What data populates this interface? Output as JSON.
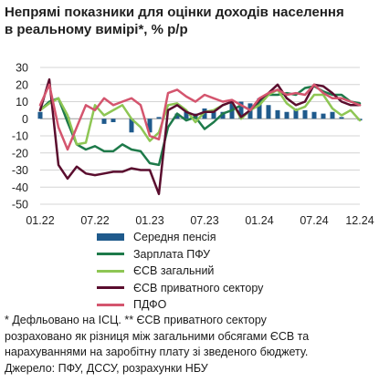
{
  "title_lines": [
    "Непрямі показники для оцінки доходів населення",
    "в реальному вимірі*, % р/р"
  ],
  "chart_data": {
    "type": "line",
    "y_ticks": [
      30,
      20,
      10,
      0,
      -10,
      -20,
      -30,
      -40,
      -50
    ],
    "ylim": [
      -50,
      30
    ],
    "x_tick_labels": [
      "01.22",
      "07.22",
      "01.23",
      "07.23",
      "01.24",
      "07.24",
      "12.24"
    ],
    "x_tick_months": [
      0,
      6,
      12,
      18,
      24,
      30,
      35
    ],
    "grid": true,
    "legend": "bottom",
    "series": [
      {
        "name": "Середня пенсія",
        "type": "bar",
        "color": "#1f5a8c",
        "values": [
          4,
          0,
          0,
          1,
          0,
          0,
          0,
          -3,
          -2,
          0,
          -8,
          0,
          -8,
          1,
          0,
          3,
          4,
          3,
          6,
          4,
          4,
          9,
          10,
          9,
          12,
          8,
          5,
          4,
          6,
          5,
          4,
          3,
          4,
          1,
          0,
          -1
        ]
      },
      {
        "name": "Зарплата ПФУ",
        "type": "line",
        "color": "#1e7a4a",
        "values": [
          5,
          10,
          12,
          -2,
          -15,
          -18,
          -16,
          -19,
          -19,
          -15,
          -18,
          -19,
          -26,
          -27,
          -5,
          3,
          -1,
          1,
          -6,
          -2,
          3,
          5,
          8,
          5,
          9,
          14,
          14,
          15,
          14,
          18,
          19,
          16,
          14,
          14,
          10,
          9
        ]
      },
      {
        "name": "ЄСВ загальний",
        "type": "line",
        "color": "#8ec654",
        "values": [
          5,
          9,
          12,
          2,
          -15,
          -14,
          8,
          2,
          5,
          8,
          0,
          -5,
          -13,
          -8,
          8,
          9,
          5,
          -2,
          4,
          5,
          8,
          10,
          0,
          5,
          8,
          14,
          17,
          9,
          5,
          7,
          14,
          14,
          6,
          2,
          5,
          -1
        ]
      },
      {
        "name": "ЄСВ приватного сектору",
        "type": "line",
        "color": "#5a0d2e",
        "values": [
          5,
          23,
          -27,
          -35,
          -28,
          -32,
          -33,
          -32,
          -31,
          -31,
          -29,
          -30,
          -30,
          -44,
          5,
          8,
          4,
          2,
          4,
          4,
          8,
          10,
          1,
          5,
          11,
          15,
          20,
          12,
          8,
          10,
          20,
          19,
          15,
          10,
          8,
          8
        ]
      },
      {
        "name": "ПДФО",
        "type": "line",
        "color": "#d4556e",
        "values": [
          8,
          20,
          -5,
          -18,
          -5,
          8,
          5,
          12,
          8,
          10,
          12,
          8,
          -10,
          -12,
          15,
          17,
          13,
          10,
          14,
          12,
          10,
          11,
          8,
          5,
          12,
          15,
          17,
          14,
          15,
          14,
          20,
          15,
          12,
          12,
          10,
          8
        ]
      }
    ]
  },
  "notes": [
    "* Дефльовано на ІСЦ. ** ЄСВ приватного сектору",
    "розраховано як різниця між загальними обсягами ЄСВ та",
    "нарахуваннями на заробітну плату зі зведеного бюджету.",
    "Джерело: ПФУ, ДССУ, розрахунки НБУ"
  ]
}
